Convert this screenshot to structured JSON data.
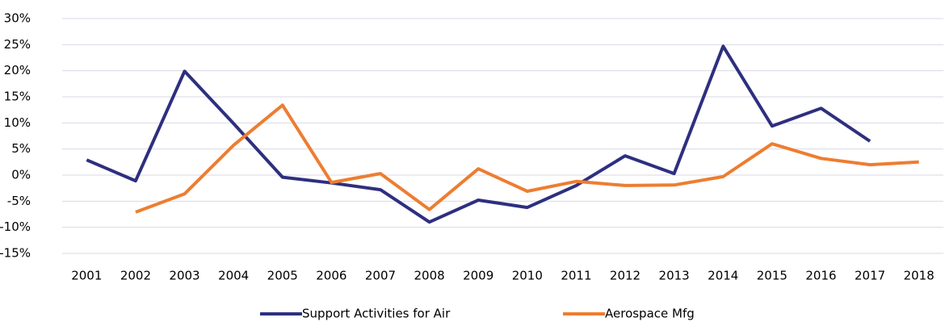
{
  "chart_data": {
    "type": "line",
    "categories": [
      "2001",
      "2002",
      "2003",
      "2004",
      "2005",
      "2006",
      "2007",
      "2008",
      "2009",
      "2010",
      "2011",
      "2012",
      "2013",
      "2014",
      "2015",
      "2016",
      "2017",
      "2018"
    ],
    "series": [
      {
        "name": "Support Activities for Air",
        "color": "#2e2f7f",
        "values": [
          2.9,
          -1.1,
          19.9,
          9.9,
          -0.4,
          -1.5,
          -2.8,
          -9.0,
          -4.8,
          -6.2,
          -2.0,
          3.7,
          0.3,
          24.7,
          9.4,
          12.8,
          6.5,
          null
        ]
      },
      {
        "name": "Aerospace Mfg",
        "color": "#ed7d31",
        "values": [
          null,
          -7.1,
          -3.6,
          5.7,
          13.4,
          -1.4,
          0.3,
          -6.6,
          1.2,
          -3.1,
          -1.2,
          -2.0,
          -1.9,
          -0.3,
          6.0,
          3.2,
          2.0,
          2.5
        ]
      }
    ],
    "ylim": [
      -15,
      30
    ],
    "yticks": [
      {
        "value": -15,
        "label": "-15%"
      },
      {
        "value": -10,
        "label": "-10%"
      },
      {
        "value": -5,
        "label": "-5%"
      },
      {
        "value": 0,
        "label": "0%"
      },
      {
        "value": 5,
        "label": "5%"
      },
      {
        "value": 10,
        "label": "10%"
      },
      {
        "value": 15,
        "label": "15%"
      },
      {
        "value": 20,
        "label": "20%"
      },
      {
        "value": 25,
        "label": "25%"
      },
      {
        "value": 30,
        "label": "30%"
      }
    ],
    "grid": true,
    "legend": "bottom"
  }
}
